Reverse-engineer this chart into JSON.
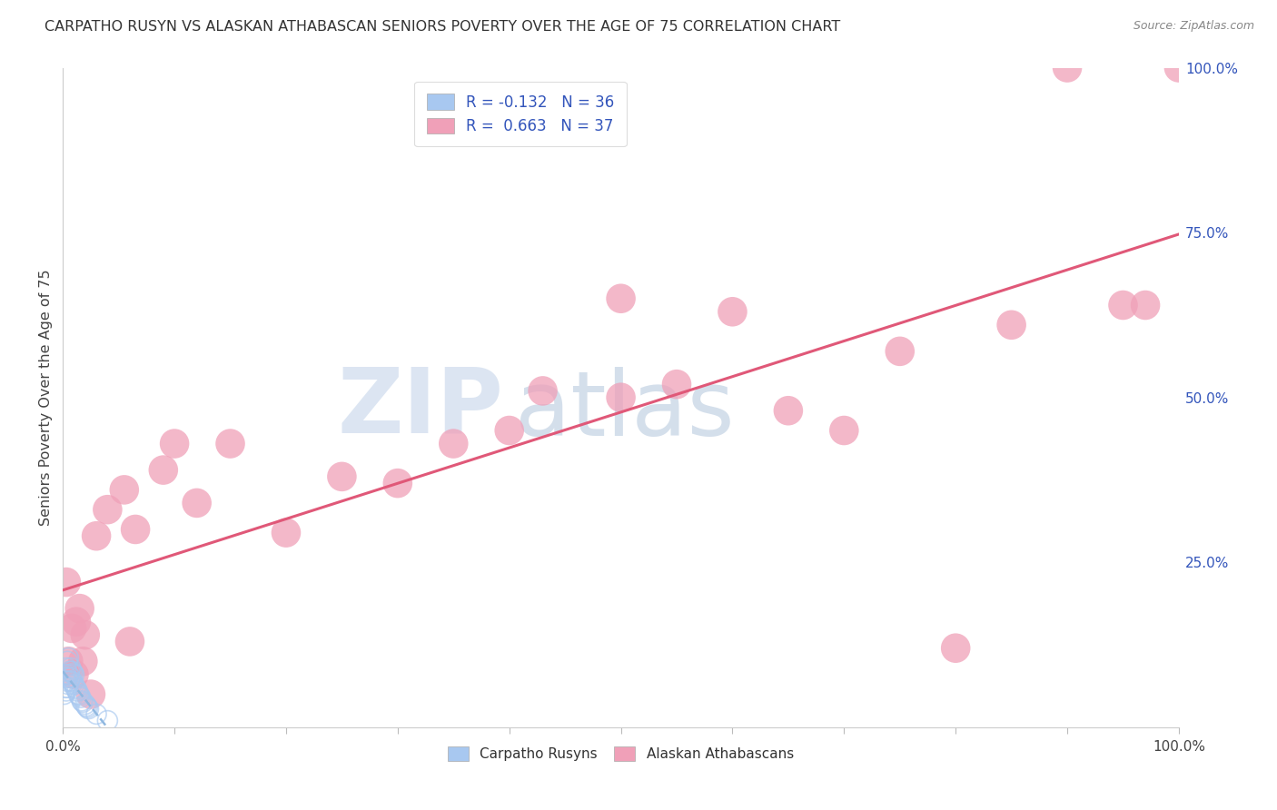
{
  "title": "CARPATHO RUSYN VS ALASKAN ATHABASCAN SENIORS POVERTY OVER THE AGE OF 75 CORRELATION CHART",
  "source": "Source: ZipAtlas.com",
  "ylabel": "Seniors Poverty Over the Age of 75",
  "legend_R1": "R = -0.132",
  "legend_N1": "N = 36",
  "legend_R2": "R =  0.663",
  "legend_N2": "N = 37",
  "color_blue": "#a8c8f0",
  "color_pink": "#f0a0b8",
  "color_line_blue": "#90b8e0",
  "color_line_pink": "#e05878",
  "watermark_zip": "ZIP",
  "watermark_atlas": "atlas",
  "watermark_color_zip": "#c8d4e8",
  "watermark_color_atlas": "#a8c0e0",
  "background": "#ffffff",
  "grid_color": "#d8d8d8",
  "blue_label": "Carpatho Rusyns",
  "pink_label": "Alaskan Athabascans",
  "blue_scatter_x": [
    0.001,
    0.002,
    0.002,
    0.003,
    0.003,
    0.003,
    0.004,
    0.004,
    0.004,
    0.005,
    0.005,
    0.005,
    0.006,
    0.006,
    0.007,
    0.007,
    0.008,
    0.008,
    0.009,
    0.009,
    0.01,
    0.01,
    0.011,
    0.012,
    0.013,
    0.014,
    0.015,
    0.016,
    0.017,
    0.018,
    0.02,
    0.021,
    0.022,
    0.023,
    0.03,
    0.04
  ],
  "blue_scatter_y": [
    0.05,
    0.06,
    0.08,
    0.055,
    0.07,
    0.09,
    0.06,
    0.075,
    0.1,
    0.065,
    0.08,
    0.105,
    0.07,
    0.085,
    0.075,
    0.09,
    0.07,
    0.085,
    0.068,
    0.082,
    0.065,
    0.08,
    0.06,
    0.058,
    0.055,
    0.05,
    0.048,
    0.045,
    0.04,
    0.038,
    0.035,
    0.032,
    0.03,
    0.028,
    0.02,
    0.01
  ],
  "pink_scatter_x": [
    0.003,
    0.005,
    0.008,
    0.01,
    0.012,
    0.015,
    0.018,
    0.02,
    0.025,
    0.03,
    0.04,
    0.055,
    0.06,
    0.065,
    0.09,
    0.1,
    0.12,
    0.15,
    0.2,
    0.25,
    0.3,
    0.35,
    0.4,
    0.43,
    0.5,
    0.55,
    0.6,
    0.65,
    0.7,
    0.75,
    0.8,
    0.85,
    0.9,
    0.95,
    0.97,
    1.0,
    0.5
  ],
  "pink_scatter_y": [
    0.22,
    0.1,
    0.15,
    0.08,
    0.16,
    0.18,
    0.1,
    0.14,
    0.05,
    0.29,
    0.33,
    0.36,
    0.13,
    0.3,
    0.39,
    0.43,
    0.34,
    0.43,
    0.295,
    0.38,
    0.37,
    0.43,
    0.45,
    0.51,
    0.5,
    0.52,
    0.63,
    0.48,
    0.45,
    0.57,
    0.12,
    0.61,
    1.0,
    0.64,
    0.64,
    1.0,
    0.65
  ],
  "xlim": [
    0,
    1.0
  ],
  "ylim": [
    0,
    1.0
  ],
  "line_blue_x0": 0.0,
  "line_blue_x1": 1.0,
  "line_pink_x0": 0.0,
  "line_pink_x1": 1.0,
  "line_pink_y0": 0.145,
  "line_pink_y1": 0.65
}
